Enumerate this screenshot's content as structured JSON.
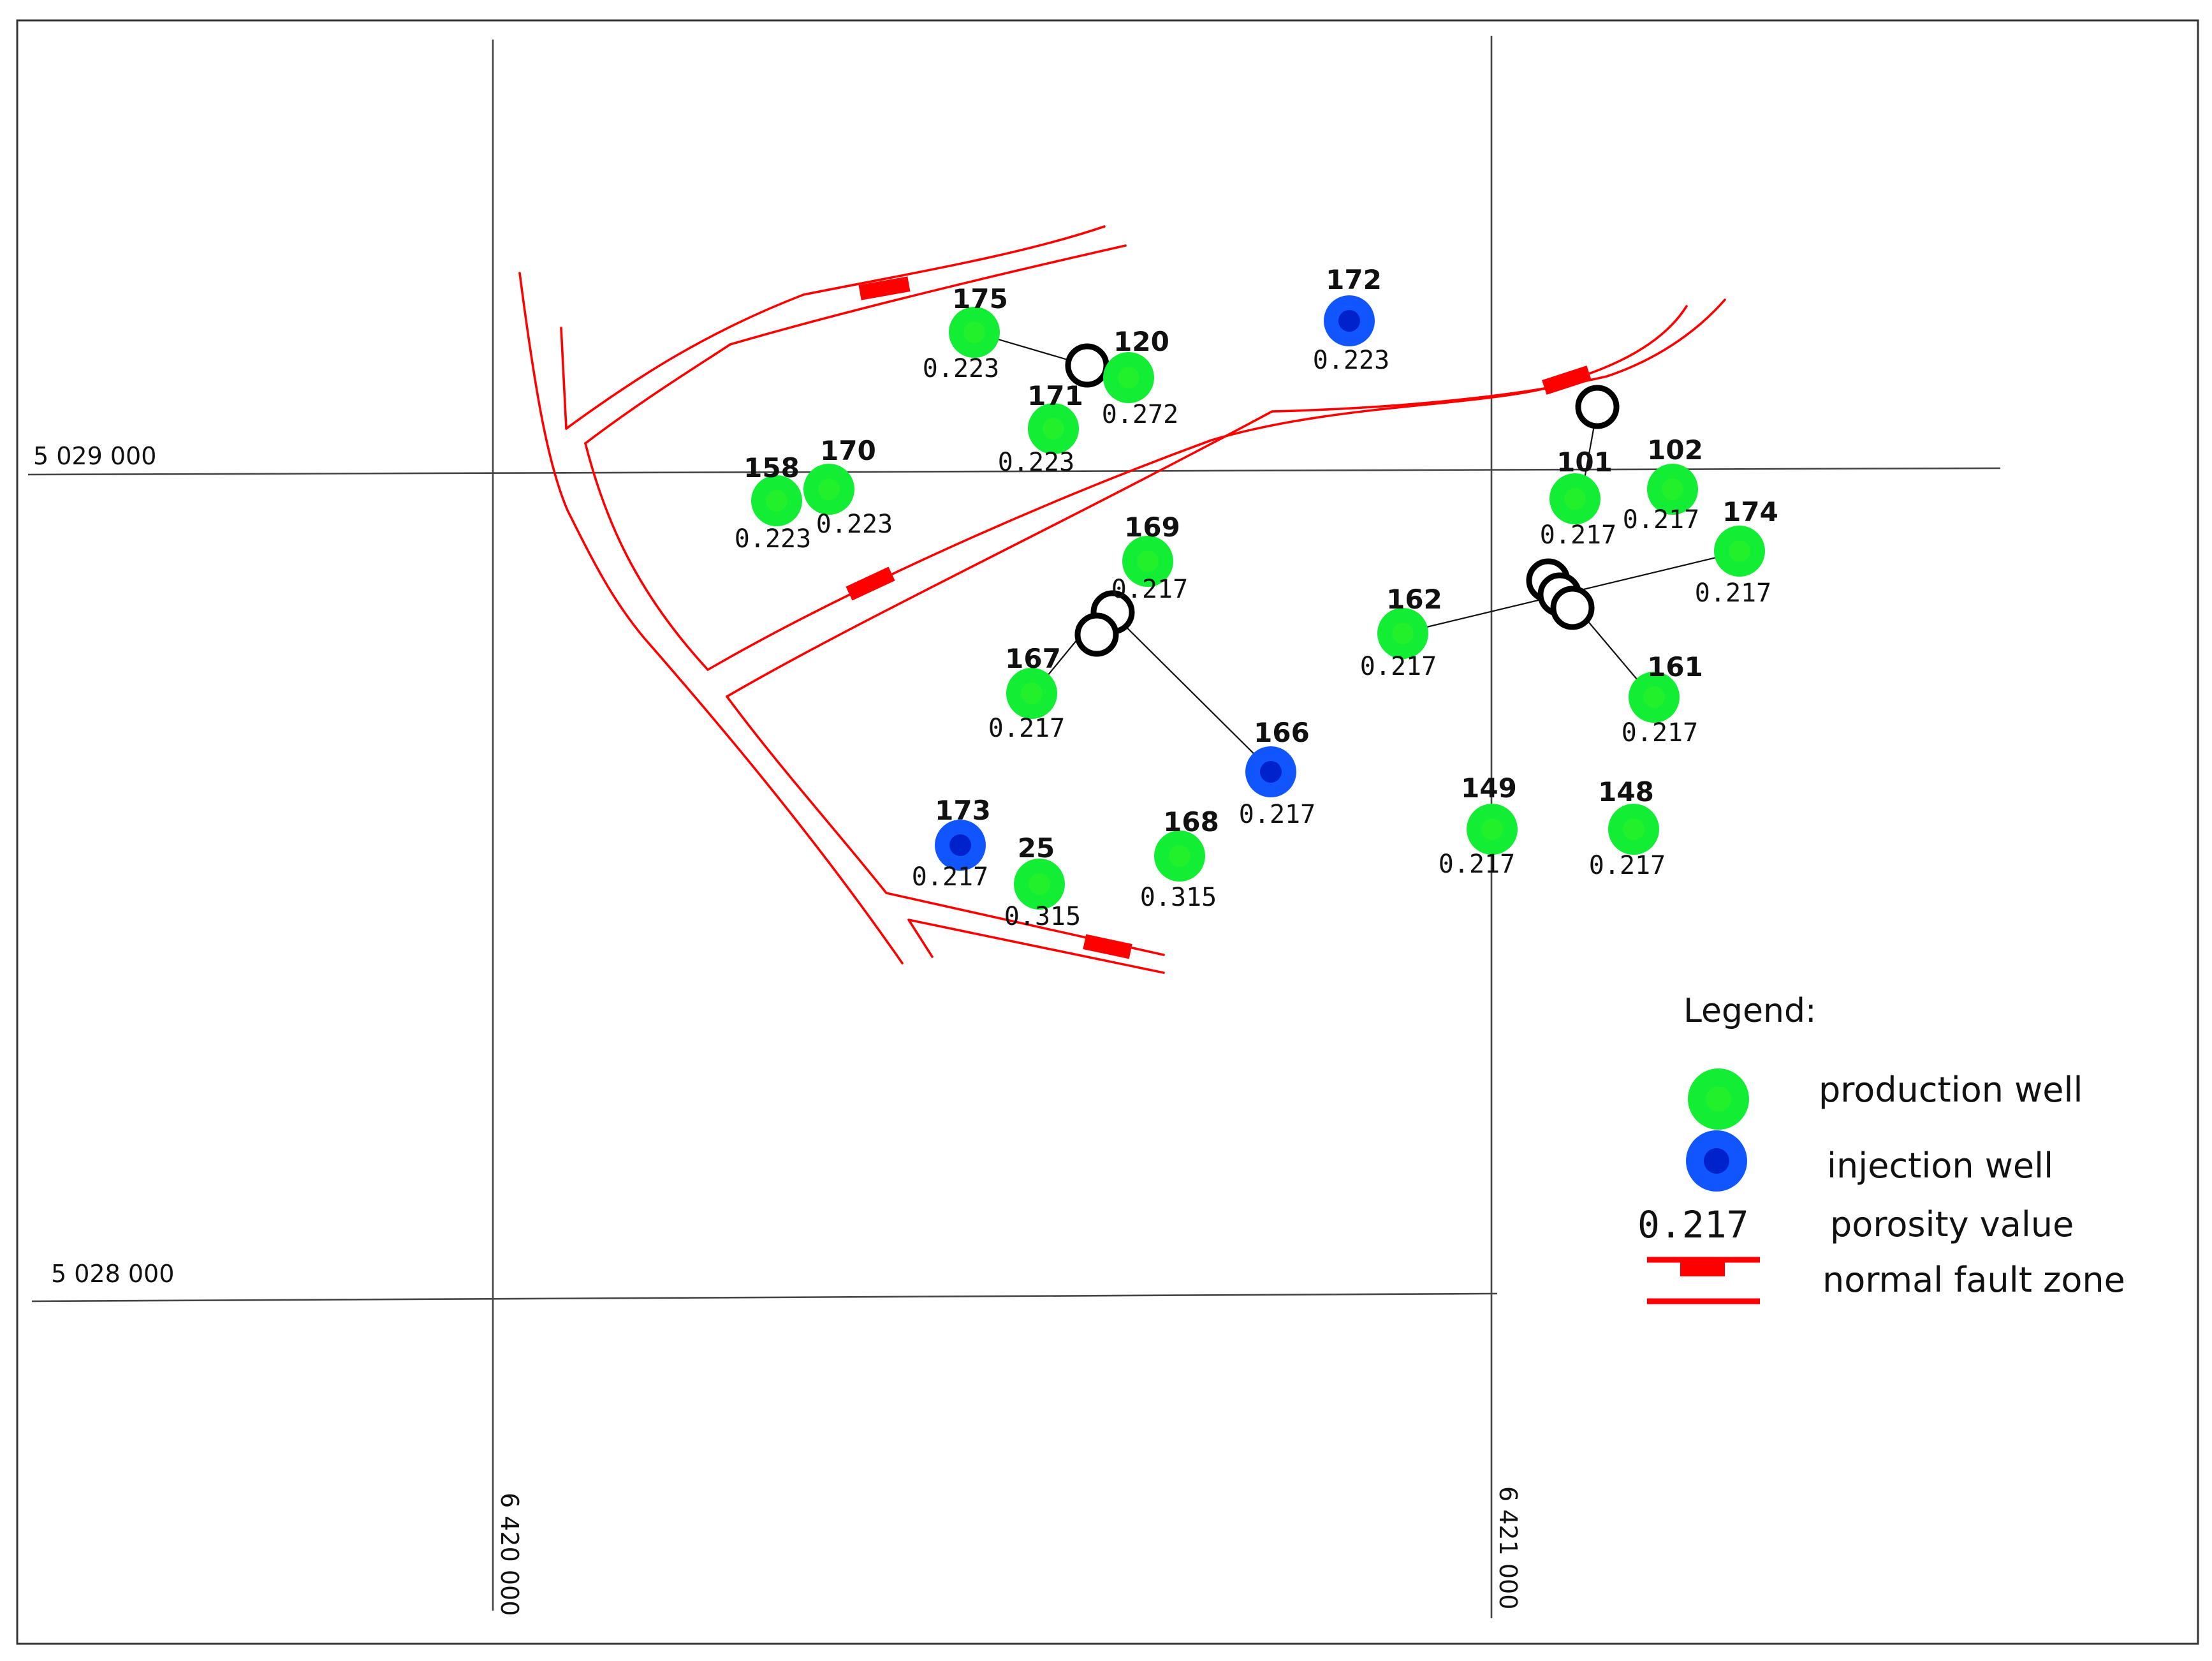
{
  "grid": {
    "northing_labels": [
      "5 029 000",
      "5 028 000"
    ],
    "easting_labels": [
      "6 420 000",
      "6 421 000"
    ]
  },
  "wells": [
    {
      "id": "175",
      "type": "production",
      "porosity": "0.223"
    },
    {
      "id": "120",
      "type": "production",
      "porosity": "0.272"
    },
    {
      "id": "171",
      "type": "production",
      "porosity": "0.223"
    },
    {
      "id": "172",
      "type": "injection",
      "porosity": "0.223"
    },
    {
      "id": "158",
      "type": "production",
      "porosity": "0.223"
    },
    {
      "id": "170",
      "type": "production",
      "porosity": "0.223"
    },
    {
      "id": "169",
      "type": "production",
      "porosity": "0.217"
    },
    {
      "id": "167",
      "type": "production",
      "porosity": "0.217"
    },
    {
      "id": "166",
      "type": "injection",
      "porosity": "0.217"
    },
    {
      "id": "173",
      "type": "injection",
      "porosity": "0.217"
    },
    {
      "id": "25",
      "type": "production",
      "porosity": "0.315"
    },
    {
      "id": "168",
      "type": "production",
      "porosity": "0.315"
    },
    {
      "id": "101",
      "type": "production",
      "porosity": "0.217"
    },
    {
      "id": "102",
      "type": "production",
      "porosity": "0.217"
    },
    {
      "id": "174",
      "type": "production",
      "porosity": "0.217"
    },
    {
      "id": "162",
      "type": "production",
      "porosity": "0.217"
    },
    {
      "id": "161",
      "type": "production",
      "porosity": "0.217"
    },
    {
      "id": "149",
      "type": "production",
      "porosity": "0.217"
    },
    {
      "id": "148",
      "type": "production",
      "porosity": "0.217"
    }
  ],
  "legend": {
    "title": "Legend:",
    "production_label": "production well",
    "injection_label": "injection well",
    "porosity_sample": "0.217",
    "porosity_label": "porosity value",
    "fault_label": "normal fault zone"
  },
  "colors": {
    "production": "#11ee33",
    "production_core": "#22f02a",
    "injection": "#1155ff",
    "injection_core": "#0022cc",
    "fault": "#ff0000"
  }
}
